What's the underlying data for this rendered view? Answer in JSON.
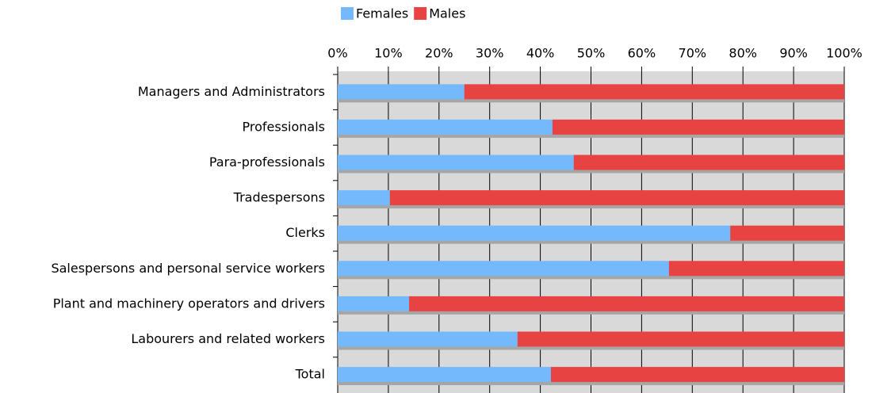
{
  "chart_data": {
    "type": "stacked_barh",
    "categories": [
      "Managers and Administrators",
      "Professionals",
      "Para-professionals",
      "Tradespersons",
      "Clerks",
      "Salespersons and personal service workers",
      "Plant and machinery operators and drivers",
      "Labourers and related workers",
      "Total"
    ],
    "series": [
      {
        "name": "Females",
        "color": "#75b9fd",
        "values": [
          25,
          42.4,
          46.6,
          10.3,
          77.5,
          65.4,
          14.1,
          35.5,
          42.1
        ]
      },
      {
        "name": "Males",
        "color": "#e84343",
        "values": [
          75,
          57.6,
          53.4,
          89.7,
          22.5,
          34.6,
          85.9,
          64.5,
          57.9
        ]
      }
    ],
    "xlim": [
      0,
      100
    ],
    "xticks": [
      {
        "value": 0,
        "label": "0%"
      },
      {
        "value": 10,
        "label": "10%"
      },
      {
        "value": 20,
        "label": "20%"
      },
      {
        "value": 30,
        "label": "30%"
      },
      {
        "value": 40,
        "label": "40%"
      },
      {
        "value": 50,
        "label": "50%"
      },
      {
        "value": 60,
        "label": "60%"
      },
      {
        "value": 70,
        "label": "70%"
      },
      {
        "value": 80,
        "label": "80%"
      },
      {
        "value": 90,
        "label": "90%"
      },
      {
        "value": 100,
        "label": "100%"
      }
    ],
    "grid": true,
    "legend": "top"
  }
}
